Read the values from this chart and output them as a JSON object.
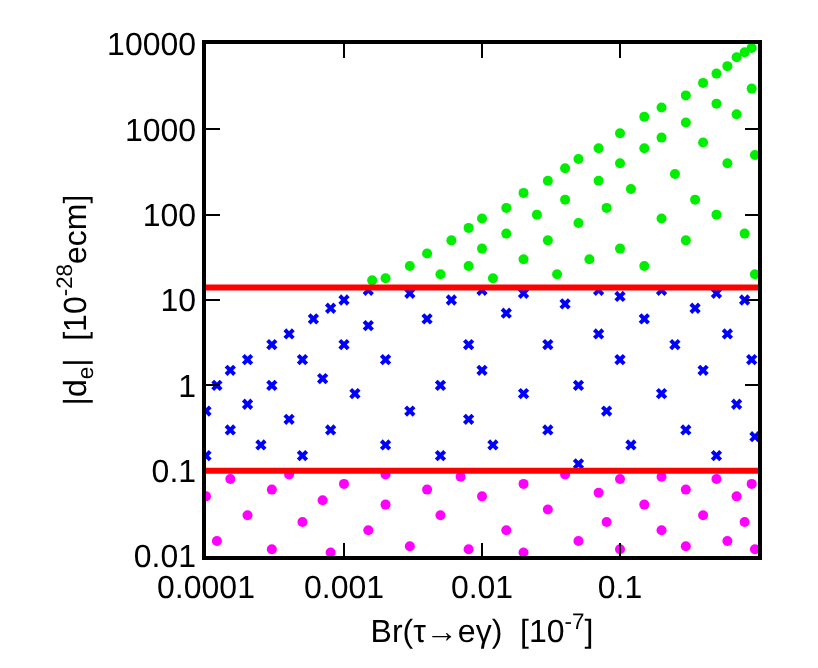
{
  "chart_data": {
    "type": "scatter",
    "xlabel": "Br(τ→eγ)  [10$^{-7}$]",
    "ylabel": "|d$_{e}$|  [10$^{-28}$ecm]",
    "log": "xy",
    "xlim": [
      0.0001,
      1
    ],
    "ylim": [
      0.01,
      10000
    ],
    "xticks": [
      0.0001,
      0.001,
      0.01,
      0.1
    ],
    "yticks": [
      0.01,
      0.1,
      1,
      10,
      100,
      1000,
      10000
    ],
    "ref_lines": [
      {
        "axis": "y",
        "value": 14,
        "color": "#ff0000"
      },
      {
        "axis": "y",
        "value": 0.1,
        "color": "#ff0000"
      }
    ],
    "series": [
      {
        "color": "#00ee00",
        "marker": "circle",
        "x": [
          0.0016,
          0.002,
          0.003,
          0.004,
          0.005,
          0.006,
          0.008,
          0.008,
          0.01,
          0.01,
          0.012,
          0.015,
          0.015,
          0.02,
          0.02,
          0.025,
          0.03,
          0.03,
          0.035,
          0.04,
          0.04,
          0.05,
          0.05,
          0.06,
          0.07,
          0.07,
          0.08,
          0.1,
          0.1,
          0.1,
          0.12,
          0.15,
          0.15,
          0.15,
          0.2,
          0.2,
          0.2,
          0.25,
          0.3,
          0.3,
          0.3,
          0.35,
          0.4,
          0.4,
          0.5,
          0.5,
          0.5,
          0.6,
          0.6,
          0.7,
          0.7,
          0.8,
          0.8,
          0.9,
          0.9,
          0.95,
          0.95
        ],
        "values": [
          17,
          18,
          25,
          35,
          20,
          50,
          70,
          25,
          90,
          40,
          18,
          120,
          60,
          180,
          30,
          100,
          250,
          50,
          20,
          350,
          150,
          450,
          80,
          30,
          600,
          250,
          120,
          900,
          400,
          40,
          200,
          1400,
          600,
          25,
          1800,
          800,
          90,
          300,
          2500,
          1200,
          50,
          150,
          3500,
          700,
          4500,
          2000,
          100,
          5500,
          400,
          7000,
          1500,
          8000,
          60,
          9000,
          3000,
          500,
          20
        ]
      },
      {
        "color": "#0000ff",
        "marker": "cross",
        "x": [
          0.0001,
          0.0001,
          0.00012,
          0.00015,
          0.00015,
          0.0002,
          0.0002,
          0.00025,
          0.0003,
          0.0003,
          0.0004,
          0.0004,
          0.0005,
          0.0005,
          0.0006,
          0.0007,
          0.0008,
          0.0008,
          0.001,
          0.001,
          0.0012,
          0.0015,
          0.0015,
          0.002,
          0.002,
          0.003,
          0.003,
          0.004,
          0.005,
          0.005,
          0.006,
          0.008,
          0.008,
          0.01,
          0.01,
          0.012,
          0.015,
          0.02,
          0.02,
          0.03,
          0.03,
          0.04,
          0.05,
          0.05,
          0.07,
          0.07,
          0.08,
          0.1,
          0.1,
          0.12,
          0.15,
          0.2,
          0.2,
          0.25,
          0.3,
          0.35,
          0.4,
          0.5,
          0.5,
          0.6,
          0.7,
          0.8,
          0.9,
          0.95
        ],
        "values": [
          0.5,
          0.15,
          1,
          0.3,
          1.5,
          2,
          0.6,
          0.2,
          3,
          1,
          4,
          0.4,
          2,
          0.15,
          6,
          1.2,
          8,
          0.3,
          10,
          3,
          0.8,
          13,
          5,
          0.2,
          2,
          12,
          0.5,
          6,
          1,
          0.15,
          10,
          3,
          0.4,
          13,
          1.5,
          0.2,
          7,
          0.8,
          12,
          3,
          0.3,
          9,
          1,
          0.12,
          13,
          4,
          0.5,
          2,
          11,
          0.2,
          6,
          0.8,
          13,
          3,
          0.3,
          8,
          1.5,
          0.15,
          12,
          4,
          0.6,
          10,
          2,
          0.25
        ]
      },
      {
        "color": "#ff00ff",
        "marker": "circle",
        "x": [
          0.0001,
          0.00012,
          0.00015,
          0.0002,
          0.0003,
          0.0003,
          0.0004,
          0.0005,
          0.0007,
          0.0008,
          0.001,
          0.0015,
          0.002,
          0.002,
          0.003,
          0.004,
          0.005,
          0.007,
          0.008,
          0.01,
          0.015,
          0.02,
          0.02,
          0.03,
          0.04,
          0.05,
          0.07,
          0.08,
          0.1,
          0.1,
          0.15,
          0.2,
          0.2,
          0.3,
          0.3,
          0.4,
          0.5,
          0.6,
          0.7,
          0.8,
          0.9,
          0.95
        ],
        "values": [
          0.05,
          0.015,
          0.08,
          0.03,
          0.012,
          0.06,
          0.09,
          0.025,
          0.045,
          0.011,
          0.07,
          0.02,
          0.09,
          0.04,
          0.013,
          0.06,
          0.03,
          0.085,
          0.012,
          0.05,
          0.02,
          0.07,
          0.011,
          0.035,
          0.09,
          0.015,
          0.055,
          0.025,
          0.08,
          0.012,
          0.04,
          0.02,
          0.085,
          0.06,
          0.013,
          0.03,
          0.08,
          0.015,
          0.05,
          0.025,
          0.07,
          0.012
        ]
      }
    ]
  }
}
